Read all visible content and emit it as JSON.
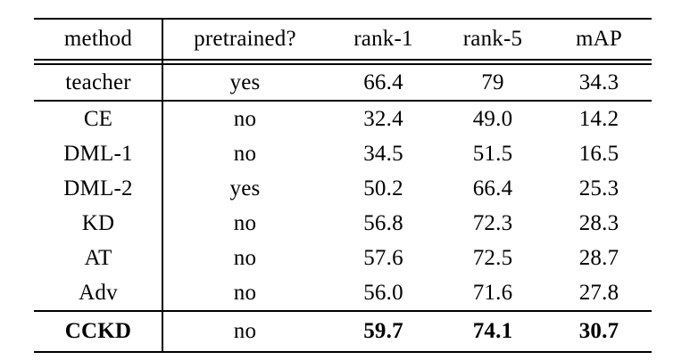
{
  "table": {
    "title": "re-identification results table",
    "header": {
      "method": "method",
      "pretrained": "pretrained?",
      "rank1": "rank-1",
      "rank5": "rank-5",
      "map": "mAP"
    },
    "rows": [
      {
        "method": "teacher",
        "pretrained": "yes",
        "rank1": "66.4",
        "rank5": "79",
        "map": "34.3"
      },
      {
        "method": "CE",
        "pretrained": "no",
        "rank1": "32.4",
        "rank5": "49.0",
        "map": "14.2"
      },
      {
        "method": "DML-1",
        "pretrained": "no",
        "rank1": "34.5",
        "rank5": "51.5",
        "map": "16.5"
      },
      {
        "method": "DML-2",
        "pretrained": "yes",
        "rank1": "50.2",
        "rank5": "66.4",
        "map": "25.3"
      },
      {
        "method": "KD",
        "pretrained": "no",
        "rank1": "56.8",
        "rank5": "72.3",
        "map": "28.3"
      },
      {
        "method": "AT",
        "pretrained": "no",
        "rank1": "57.6",
        "rank5": "72.5",
        "map": "28.7"
      },
      {
        "method": "Adv",
        "pretrained": "no",
        "rank1": "56.0",
        "rank5": "71.6",
        "map": "27.8"
      },
      {
        "method": "CCKD",
        "pretrained": "no",
        "rank1": "59.7",
        "rank5": "74.1",
        "map": "30.7",
        "bold": true
      }
    ],
    "colors": {
      "text": "#000000",
      "rule": "#000000",
      "background": "#ffffff"
    }
  }
}
